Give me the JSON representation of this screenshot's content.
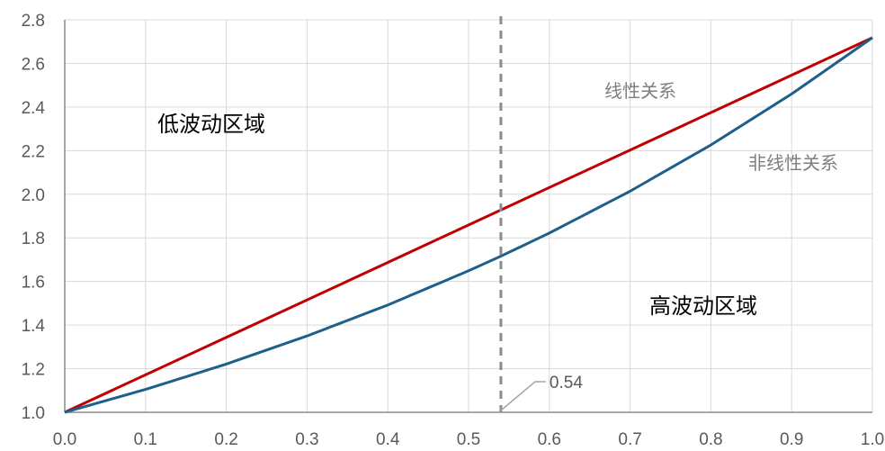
{
  "chart_data": {
    "type": "line",
    "title": "",
    "xlabel": "",
    "ylabel": "",
    "xlim": [
      0,
      1
    ],
    "ylim": [
      1,
      2.8
    ],
    "grid": true,
    "x_ticks": [
      "0.0",
      "0.1",
      "0.2",
      "0.3",
      "0.4",
      "0.5",
      "0.6",
      "0.7",
      "0.8",
      "0.9",
      "1.0"
    ],
    "y_ticks": [
      "1.0",
      "1.2",
      "1.4",
      "1.6",
      "1.8",
      "2.0",
      "2.2",
      "2.4",
      "2.6",
      "2.8"
    ],
    "series": [
      {
        "color": "#c00000",
        "x": [
          0,
          1
        ],
        "y": [
          1.0,
          2.718
        ]
      },
      {
        "color": "#1f5f8b",
        "x": [
          0,
          0.1,
          0.2,
          0.3,
          0.4,
          0.5,
          0.54,
          0.6,
          0.7,
          0.8,
          0.9,
          1.0
        ],
        "y": [
          1.0,
          1.105,
          1.221,
          1.35,
          1.492,
          1.649,
          1.716,
          1.822,
          2.014,
          2.226,
          2.46,
          2.718
        ]
      }
    ],
    "vline": {
      "x": 0.54,
      "label": "0.54",
      "color": "#8c8c8c"
    },
    "annotations": {
      "linear": "线性关系",
      "nonlinear": "非线性关系",
      "low_vol": "低波动区域",
      "high_vol": "高波动区域"
    },
    "colors": {
      "axis": "#8c8c8c",
      "grid": "#d9d9d9",
      "tick_text": "#595959",
      "annotation_text": "#7f7f7f",
      "region_text": "#000000"
    }
  }
}
